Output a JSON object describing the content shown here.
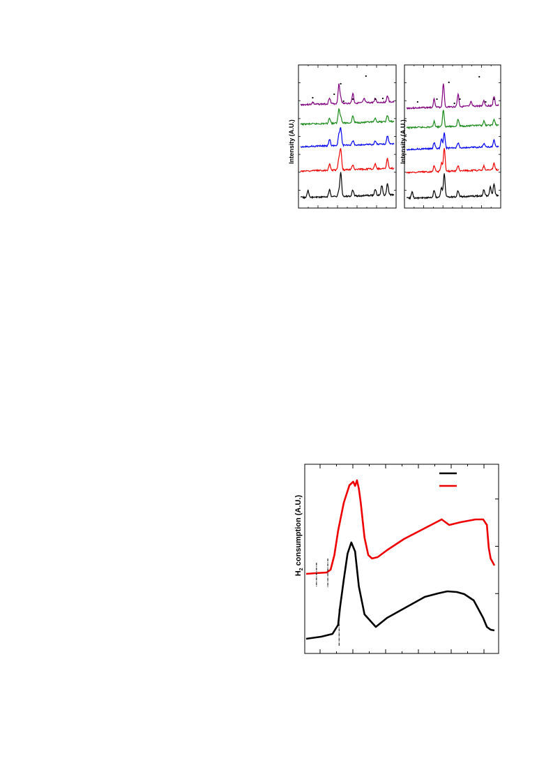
{
  "chart_data": [
    {
      "type": "line",
      "panel": "xrd-left",
      "ylabel": "Intensity (A.U.)",
      "x_range": [
        0,
        100
      ],
      "grid": false,
      "peak_markers": [
        {
          "x": 13,
          "y": 140
        },
        {
          "x": 36,
          "y": 135
        },
        {
          "x": 43,
          "y": 120
        },
        {
          "x": 70,
          "y": 109
        },
        {
          "x": 46,
          "y": 145
        },
        {
          "x": 56,
          "y": 142
        },
        {
          "x": 80,
          "y": 142
        },
        {
          "x": 88,
          "y": 141
        }
      ],
      "series": [
        {
          "color": "#800080",
          "baseline": 150,
          "peaks": [
            {
              "x": 13,
              "h": 3
            },
            {
              "x": 31,
              "h": 9
            },
            {
              "x": 41,
              "h": 27
            },
            {
              "x": 43,
              "h": 8
            },
            {
              "x": 56,
              "h": 14
            },
            {
              "x": 68,
              "h": 6
            },
            {
              "x": 80,
              "h": 6
            },
            {
              "x": 93,
              "h": 9
            }
          ]
        },
        {
          "color": "#1a8a1a",
          "baseline": 178,
          "peaks": [
            {
              "x": 31,
              "h": 8
            },
            {
              "x": 41,
              "h": 20
            },
            {
              "x": 43,
              "h": 9
            },
            {
              "x": 56,
              "h": 10
            },
            {
              "x": 80,
              "h": 5
            },
            {
              "x": 93,
              "h": 9
            }
          ]
        },
        {
          "color": "#0000ee",
          "baseline": 210,
          "peaks": [
            {
              "x": 31,
              "h": 9
            },
            {
              "x": 41,
              "h": 15
            },
            {
              "x": 43,
              "h": 24
            },
            {
              "x": 56,
              "h": 6
            },
            {
              "x": 80,
              "h": 5
            },
            {
              "x": 93,
              "h": 12
            }
          ]
        },
        {
          "color": "#ee0000",
          "baseline": 245,
          "peaks": [
            {
              "x": 31,
              "h": 9
            },
            {
              "x": 41,
              "h": 16
            },
            {
              "x": 43,
              "h": 30
            },
            {
              "x": 56,
              "h": 7
            },
            {
              "x": 80,
              "h": 7
            },
            {
              "x": 93,
              "h": 14
            }
          ]
        },
        {
          "color": "#000000",
          "baseline": 283,
          "peaks": [
            {
              "x": 8,
              "h": 10
            },
            {
              "x": 31,
              "h": 10
            },
            {
              "x": 41,
              "h": 7
            },
            {
              "x": 43,
              "h": 34
            },
            {
              "x": 56,
              "h": 9
            },
            {
              "x": 80,
              "h": 9
            },
            {
              "x": 87,
              "h": 14
            },
            {
              "x": 93,
              "h": 16
            }
          ]
        }
      ]
    },
    {
      "type": "line",
      "panel": "xrd-right",
      "ylabel": "Intensity (A.U.)",
      "x_range": [
        0,
        100
      ],
      "grid": false,
      "peak_markers": [
        {
          "x": 46,
          "y": 118
        },
        {
          "x": 79,
          "y": 110
        },
        {
          "x": 12,
          "y": 146
        },
        {
          "x": 33,
          "y": 142
        },
        {
          "x": 52,
          "y": 148
        },
        {
          "x": 58,
          "y": 142
        },
        {
          "x": 86,
          "y": 146
        },
        {
          "x": 95,
          "y": 142
        }
      ],
      "series": [
        {
          "color": "#800080",
          "baseline": 155,
          "peaks": [
            {
              "x": 30,
              "h": 12
            },
            {
              "x": 40,
              "h": 34
            },
            {
              "x": 56,
              "h": 18
            },
            {
              "x": 70,
              "h": 6
            },
            {
              "x": 84,
              "h": 8
            },
            {
              "x": 95,
              "h": 13
            }
          ]
        },
        {
          "color": "#1a8a1a",
          "baseline": 183,
          "peaks": [
            {
              "x": 30,
              "h": 8
            },
            {
              "x": 40,
              "h": 24
            },
            {
              "x": 56,
              "h": 10
            },
            {
              "x": 84,
              "h": 6
            },
            {
              "x": 95,
              "h": 8
            }
          ]
        },
        {
          "color": "#0000ee",
          "baseline": 214,
          "peaks": [
            {
              "x": 30,
              "h": 9
            },
            {
              "x": 38,
              "h": 14
            },
            {
              "x": 41,
              "h": 22
            },
            {
              "x": 56,
              "h": 7
            },
            {
              "x": 84,
              "h": 5
            },
            {
              "x": 95,
              "h": 9
            }
          ]
        },
        {
          "color": "#ee0000",
          "baseline": 247,
          "peaks": [
            {
              "x": 30,
              "h": 9
            },
            {
              "x": 38,
              "h": 12
            },
            {
              "x": 41,
              "h": 34
            },
            {
              "x": 56,
              "h": 8
            },
            {
              "x": 84,
              "h": 6
            },
            {
              "x": 95,
              "h": 10
            }
          ]
        },
        {
          "color": "#000000",
          "baseline": 284,
          "peaks": [
            {
              "x": 6,
              "h": 9
            },
            {
              "x": 30,
              "h": 10
            },
            {
              "x": 38,
              "h": 14
            },
            {
              "x": 41,
              "h": 34
            },
            {
              "x": 56,
              "h": 9
            },
            {
              "x": 84,
              "h": 9
            },
            {
              "x": 91,
              "h": 13
            },
            {
              "x": 95,
              "h": 16
            }
          ]
        }
      ]
    },
    {
      "type": "line",
      "panel": "h2-tpr",
      "ylabel": "H2 consumption (A.U.)",
      "x_range": [
        0,
        100
      ],
      "grid": false,
      "legend": {
        "position": "top-right",
        "entries": [
          {
            "name": "",
            "color": "#000000"
          },
          {
            "name": "",
            "color": "#ee0000"
          }
        ]
      },
      "series": [
        {
          "color": "#ee0000",
          "points": [
            [
              0,
              822
            ],
            [
              5,
              821
            ],
            [
              11,
              820
            ],
            [
              13,
              816
            ],
            [
              15,
              795
            ],
            [
              17,
              760
            ],
            [
              20,
              720
            ],
            [
              23,
              695
            ],
            [
              25,
              690
            ],
            [
              26,
              696
            ],
            [
              27,
              688
            ],
            [
              28,
              700
            ],
            [
              29,
              720
            ],
            [
              31,
              770
            ],
            [
              33,
              795
            ],
            [
              35,
              800
            ],
            [
              38,
              798
            ],
            [
              43,
              788
            ],
            [
              52,
              772
            ],
            [
              62,
              758
            ],
            [
              72,
              744
            ],
            [
              74,
              748
            ],
            [
              76,
              752
            ],
            [
              82,
              748
            ],
            [
              90,
              744
            ],
            [
              94,
              744
            ],
            [
              96,
              752
            ],
            [
              97,
              785
            ],
            [
              98,
              800
            ],
            [
              100,
              810
            ]
          ]
        },
        {
          "color": "#000000",
          "points": [
            [
              0,
              915
            ],
            [
              8,
              912
            ],
            [
              14,
              908
            ],
            [
              17,
              895
            ],
            [
              18,
              870
            ],
            [
              20,
              830
            ],
            [
              22,
              793
            ],
            [
              24,
              777
            ],
            [
              26,
              790
            ],
            [
              28,
              840
            ],
            [
              31,
              880
            ],
            [
              37,
              898
            ],
            [
              43,
              885
            ],
            [
              53,
              870
            ],
            [
              63,
              855
            ],
            [
              70,
              850
            ],
            [
              75,
              847
            ],
            [
              80,
              848
            ],
            [
              84,
              851
            ],
            [
              89,
              860
            ],
            [
              94,
              885
            ],
            [
              96,
              898
            ],
            [
              98,
              902
            ],
            [
              100,
              903
            ]
          ]
        }
      ],
      "reference_lines": [
        {
          "x": 5.5,
          "y_from": 806,
          "y_to": 840
        },
        {
          "x": 11.5,
          "y_from": 800,
          "y_to": 842
        },
        {
          "x": 17.5,
          "y_from": 872,
          "y_to": 925
        }
      ]
    }
  ]
}
